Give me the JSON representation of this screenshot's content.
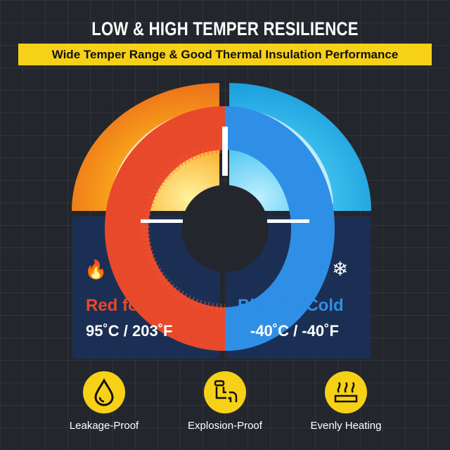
{
  "header": {
    "title": "LOW & HIGH TEMPER RESILIENCE",
    "subtitle": "Wide Temper Range & Good Thermal Insulation Performance"
  },
  "hot": {
    "label": "Red for Hot",
    "temp": "95˚C / 203˚F",
    "color": "#e8492a",
    "icon": "flame-icon"
  },
  "cold": {
    "label": "Blue for Cold",
    "temp": "-40˚C / -40˚F",
    "color": "#2f8fe6",
    "icon": "snowflake-icon"
  },
  "features": [
    {
      "label": "Leakage-Proof",
      "icon": "water-drop-icon"
    },
    {
      "label": "Explosion-Proof",
      "icon": "pipe-burst-icon"
    },
    {
      "label": "Evenly Heating",
      "icon": "heating-icon"
    }
  ],
  "colors": {
    "accent": "#f7d117",
    "background": "#23272d",
    "panel": "#1b2f55"
  }
}
